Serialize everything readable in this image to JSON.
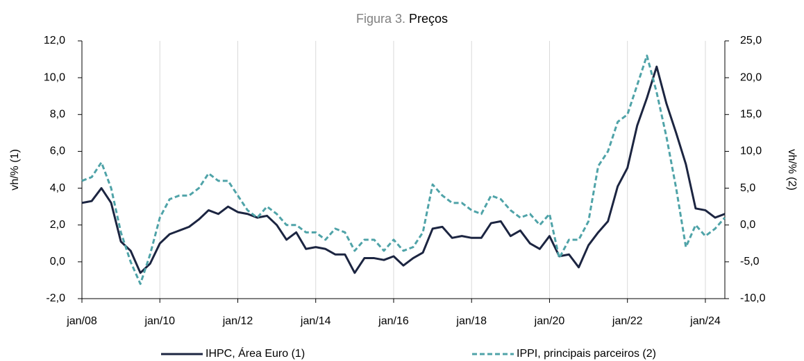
{
  "chart_data": {
    "type": "line",
    "figure_label": "Figura 3.",
    "title": "Preços",
    "ylabel": "vh/% (1)",
    "y2label": "vh/% (2)",
    "categories": [
      "jan/08",
      null,
      null,
      null,
      null,
      null,
      null,
      null,
      "jan/10",
      null,
      null,
      null,
      null,
      null,
      null,
      null,
      "jan/12",
      null,
      null,
      null,
      null,
      null,
      null,
      null,
      "jan/14",
      null,
      null,
      null,
      null,
      null,
      null,
      null,
      "jan/16",
      null,
      null,
      null,
      null,
      null,
      null,
      null,
      "jan/18",
      null,
      null,
      null,
      null,
      null,
      null,
      null,
      "jan/20",
      null,
      null,
      null,
      null,
      null,
      null,
      null,
      "jan/22",
      null,
      null,
      null,
      null,
      null,
      null,
      null,
      "jan/24",
      null,
      null
    ],
    "series": [
      {
        "name": "IHPC, Área Euro (1)",
        "color": "#1c2541",
        "style": "solid",
        "axis": "y",
        "values": [
          3.2,
          3.3,
          4.0,
          3.2,
          1.1,
          0.6,
          -0.6,
          -0.1,
          1.0,
          1.5,
          1.7,
          1.9,
          2.3,
          2.8,
          2.6,
          3.0,
          2.7,
          2.6,
          2.4,
          2.5,
          2.0,
          1.2,
          1.6,
          0.7,
          0.8,
          0.7,
          0.4,
          0.4,
          -0.6,
          0.2,
          0.2,
          0.1,
          0.3,
          -0.2,
          0.2,
          0.5,
          1.8,
          1.9,
          1.3,
          1.4,
          1.3,
          1.3,
          2.1,
          2.2,
          1.4,
          1.7,
          1.0,
          0.7,
          1.4,
          0.3,
          0.4,
          -0.3,
          0.9,
          1.6,
          2.2,
          4.1,
          5.1,
          7.4,
          8.9,
          10.6,
          8.6,
          7.0,
          5.3,
          2.9,
          2.8,
          2.4,
          2.6
        ]
      },
      {
        "name": "IPPI, principais parceiros (2)",
        "color": "#4fa3a8",
        "style": "dashed",
        "axis": "y2",
        "values": [
          6,
          6.5,
          8.5,
          5,
          -1,
          -5,
          -8,
          -4,
          1,
          3.5,
          4,
          4,
          5,
          7,
          6,
          6,
          4,
          2,
          1,
          2.5,
          1.5,
          0,
          0,
          -1,
          -1,
          -2,
          -0.5,
          -1,
          -3.5,
          -2,
          -2,
          -3.5,
          -2,
          -3.5,
          -3,
          -1,
          5.5,
          4,
          3,
          3,
          2,
          1.5,
          4,
          3.5,
          2,
          1,
          1.5,
          0,
          1.5,
          -4.5,
          -2,
          -2,
          0.5,
          8,
          10,
          14,
          15,
          19,
          23,
          18,
          12,
          5,
          -3,
          0,
          -1.5,
          -0.5,
          1
        ]
      }
    ],
    "ylim": [
      -2,
      12
    ],
    "yticks": [
      {
        "value": -2,
        "label": "-2,0"
      },
      {
        "value": 0,
        "label": "0,0"
      },
      {
        "value": 2,
        "label": "2,0"
      },
      {
        "value": 4,
        "label": "4,0"
      },
      {
        "value": 6,
        "label": "6,0"
      },
      {
        "value": 8,
        "label": "8,0"
      },
      {
        "value": 10,
        "label": "10,0"
      },
      {
        "value": 12,
        "label": "12,0"
      }
    ],
    "y2lim": [
      -10,
      25
    ],
    "y2ticks": [
      {
        "value": -10,
        "label": "-10,0"
      },
      {
        "value": -5,
        "label": "-5,0"
      },
      {
        "value": 0,
        "label": "0,0"
      },
      {
        "value": 5,
        "label": "5,0"
      },
      {
        "value": 10,
        "label": "10,0"
      },
      {
        "value": 15,
        "label": "15,0"
      },
      {
        "value": 20,
        "label": "20,0"
      },
      {
        "value": 25,
        "label": "25,0"
      }
    ],
    "grid": true,
    "legend": "bottom"
  }
}
